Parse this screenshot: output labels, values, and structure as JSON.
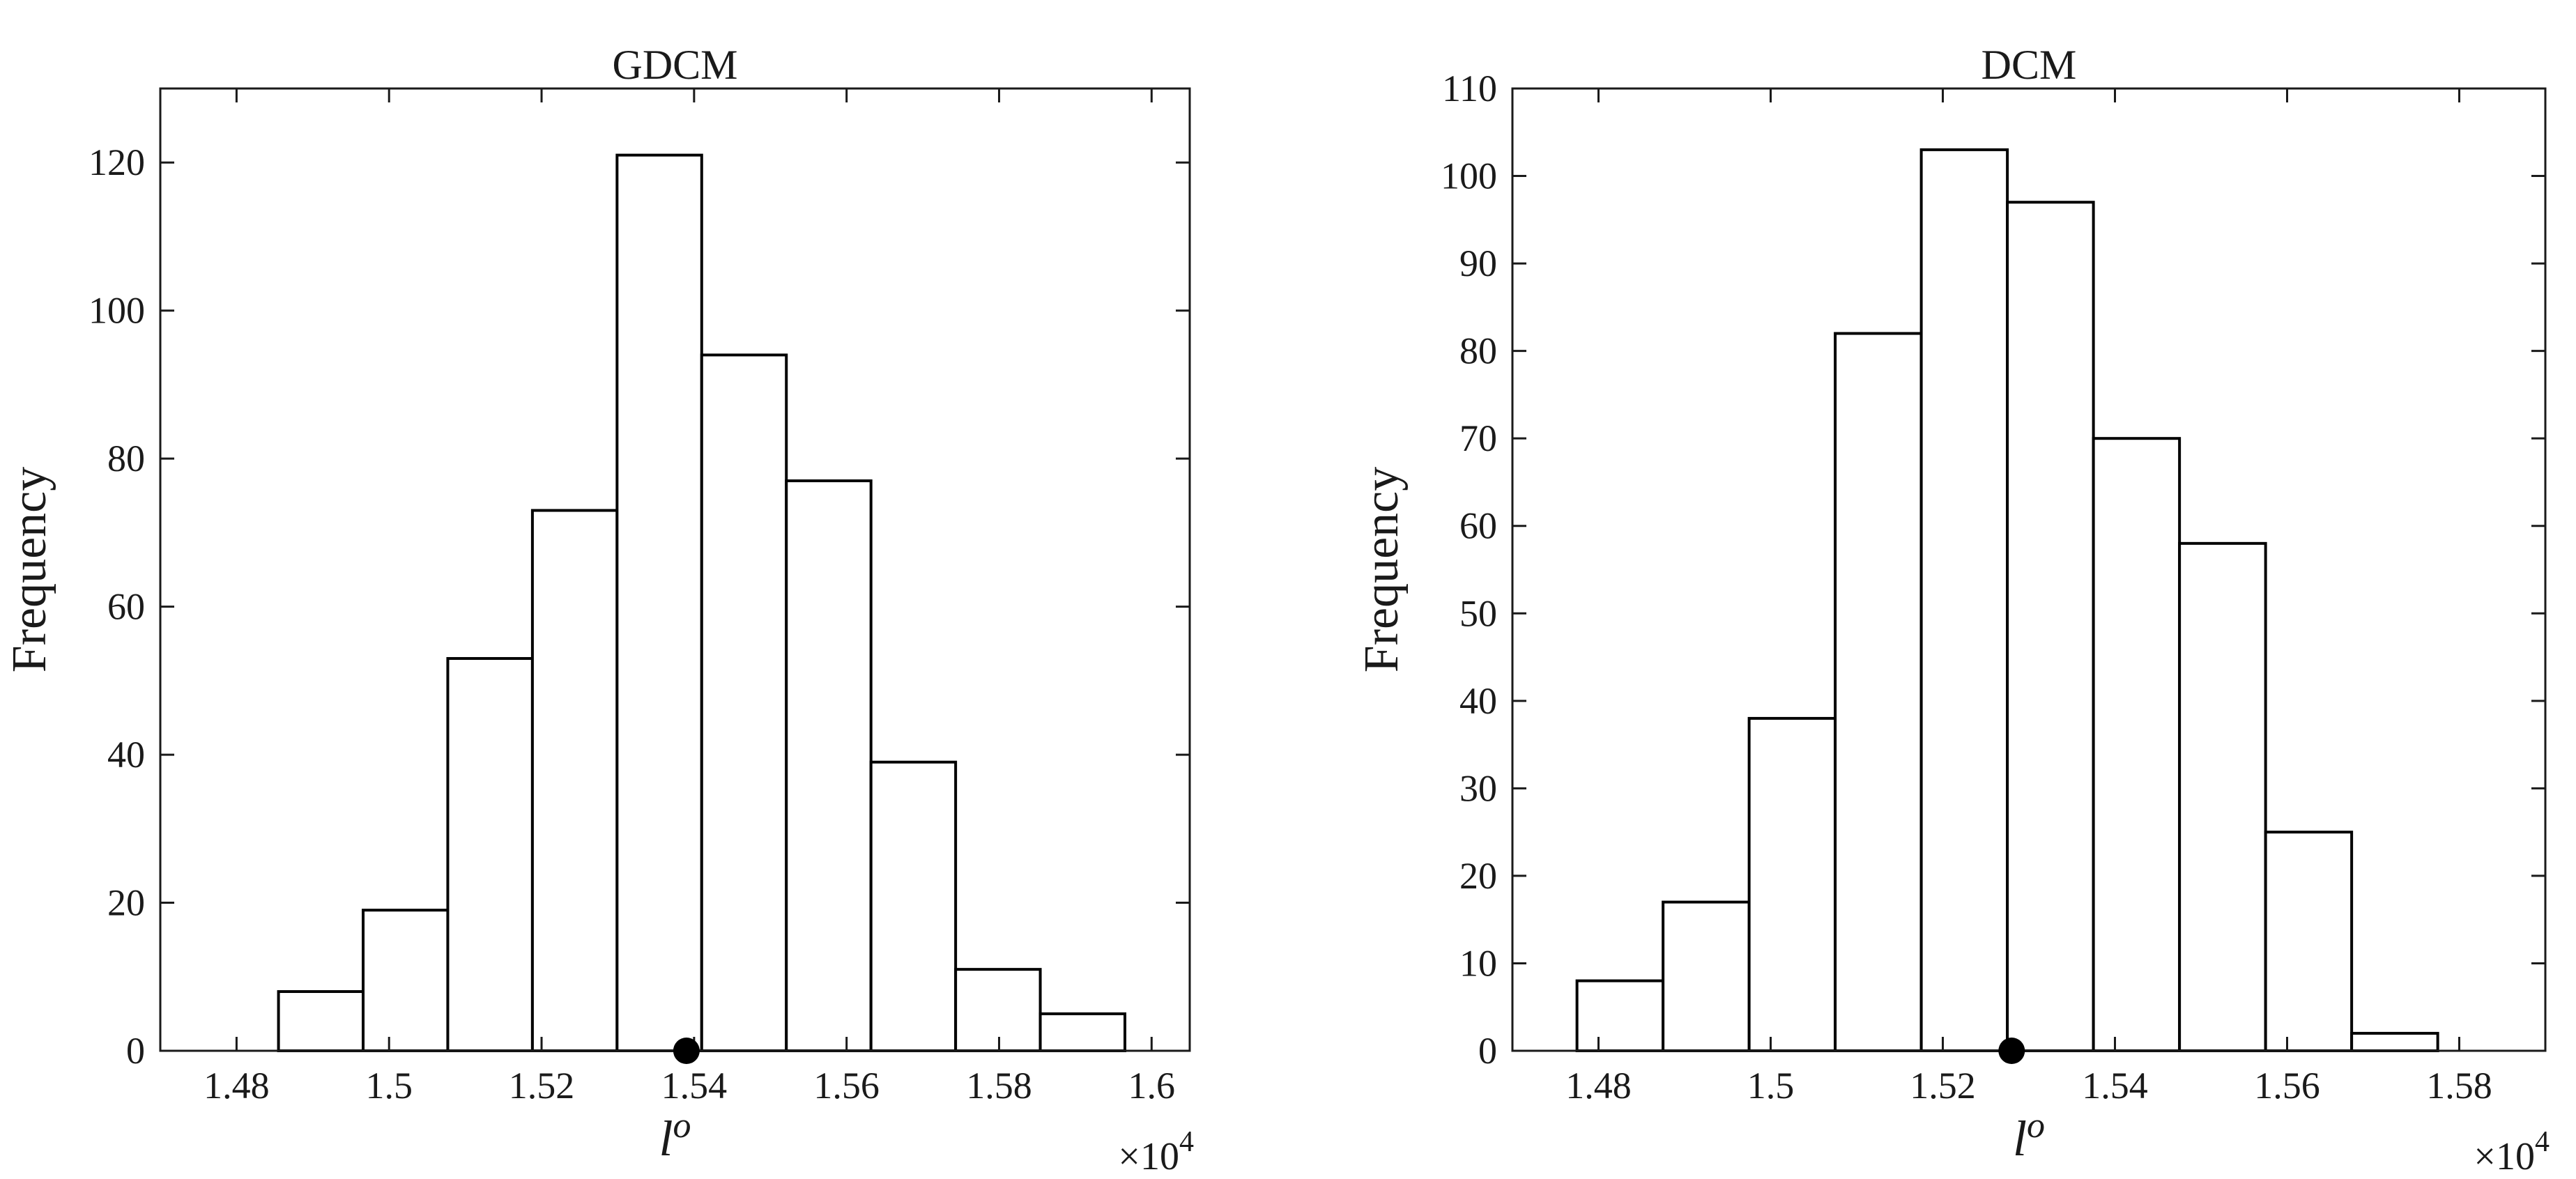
{
  "chart_data": [
    {
      "type": "bar",
      "title": "GDCM",
      "xlabel": "l",
      "xlabel_superscript": "o",
      "ylabel": "Frequency",
      "x_exponent_label": "×10",
      "x_exponent_power": "4",
      "xlim": [
        1.47,
        1.605
      ],
      "ylim": [
        0,
        130
      ],
      "xticks": [
        1.48,
        1.5,
        1.52,
        1.54,
        1.56,
        1.58,
        1.6
      ],
      "xtick_labels": [
        "1.48",
        "1.5",
        "1.52",
        "1.54",
        "1.56",
        "1.58",
        "1.6"
      ],
      "yticks": [
        0,
        20,
        40,
        60,
        80,
        100,
        120
      ],
      "ytick_labels": [
        "0",
        "20",
        "40",
        "60",
        "80",
        "100",
        "120"
      ],
      "bin_edges": [
        1.4855,
        1.4966,
        1.5077,
        1.5188,
        1.5299,
        1.541,
        1.5521,
        1.5632,
        1.5743,
        1.5854,
        1.5965
      ],
      "values": [
        8,
        19,
        53,
        73,
        121,
        94,
        77,
        39,
        11,
        5
      ],
      "marker_x": 1.539,
      "grid": false
    },
    {
      "type": "bar",
      "title": "DCM",
      "xlabel": "l",
      "xlabel_superscript": "o",
      "ylabel": "Frequency",
      "x_exponent_label": "×10",
      "x_exponent_power": "4",
      "xlim": [
        1.47,
        1.59
      ],
      "ylim": [
        0,
        110
      ],
      "xticks": [
        1.48,
        1.5,
        1.52,
        1.54,
        1.56,
        1.58
      ],
      "xtick_labels": [
        "1.48",
        "1.5",
        "1.52",
        "1.54",
        "1.56",
        "1.58"
      ],
      "yticks": [
        0,
        10,
        20,
        30,
        40,
        50,
        60,
        70,
        80,
        90,
        100,
        110
      ],
      "ytick_labels": [
        "0",
        "10",
        "20",
        "30",
        "40",
        "50",
        "60",
        "70",
        "80",
        "90",
        "100",
        "110"
      ],
      "bin_edges": [
        1.4775,
        1.4875,
        1.4975,
        1.5075,
        1.5175,
        1.5275,
        1.5375,
        1.5475,
        1.5575,
        1.5675,
        1.5775
      ],
      "values": [
        8,
        17,
        38,
        82,
        103,
        97,
        70,
        58,
        25,
        2
      ],
      "marker_x": 1.528,
      "grid": false
    }
  ]
}
